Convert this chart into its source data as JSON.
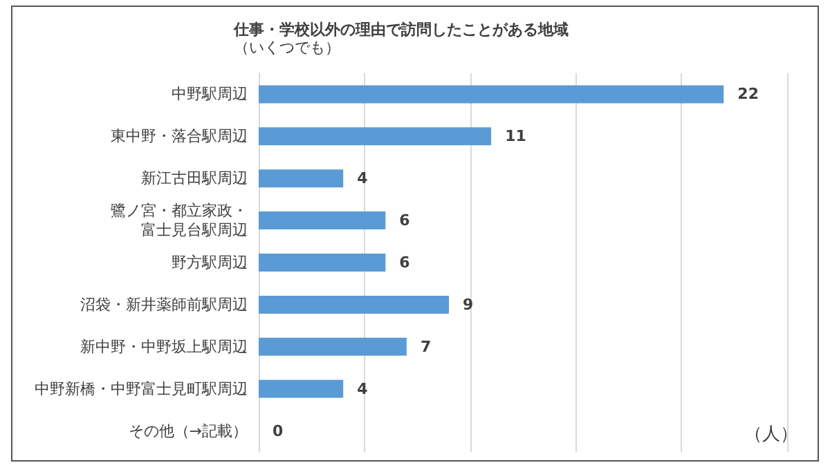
{
  "chart_data": {
    "type": "bar",
    "orientation": "horizontal",
    "title": "仕事・学校以外の理由で訪問したことがある地域",
    "subtitle": "（いくつでも）",
    "xlabel": "（人）",
    "categories": [
      "中野駅周辺",
      "東中野・落合駅周辺",
      "新江古田駅周辺",
      "鷺ノ宮・都立家政・富士見台駅周辺",
      "野方駅周辺",
      "沼袋・新井薬師前駅周辺",
      "新中野・中野坂上駅周辺",
      "中野新橋・中野富士見町駅周辺",
      "その他（→記載）"
    ],
    "values": [
      22,
      11,
      4,
      6,
      6,
      9,
      7,
      4,
      0
    ],
    "color": "#5b9bd5",
    "data_labels": true,
    "xlim": [
      0,
      25
    ],
    "xticks": [
      {
        "value": 0,
        "label": null
      },
      {
        "value": 5,
        "label": null
      },
      {
        "value": 10,
        "label": null
      },
      {
        "value": 15,
        "label": null
      },
      {
        "value": 20,
        "label": null
      },
      {
        "value": 25,
        "label": null
      }
    ],
    "tick_labels": "y",
    "grid": "x"
  }
}
